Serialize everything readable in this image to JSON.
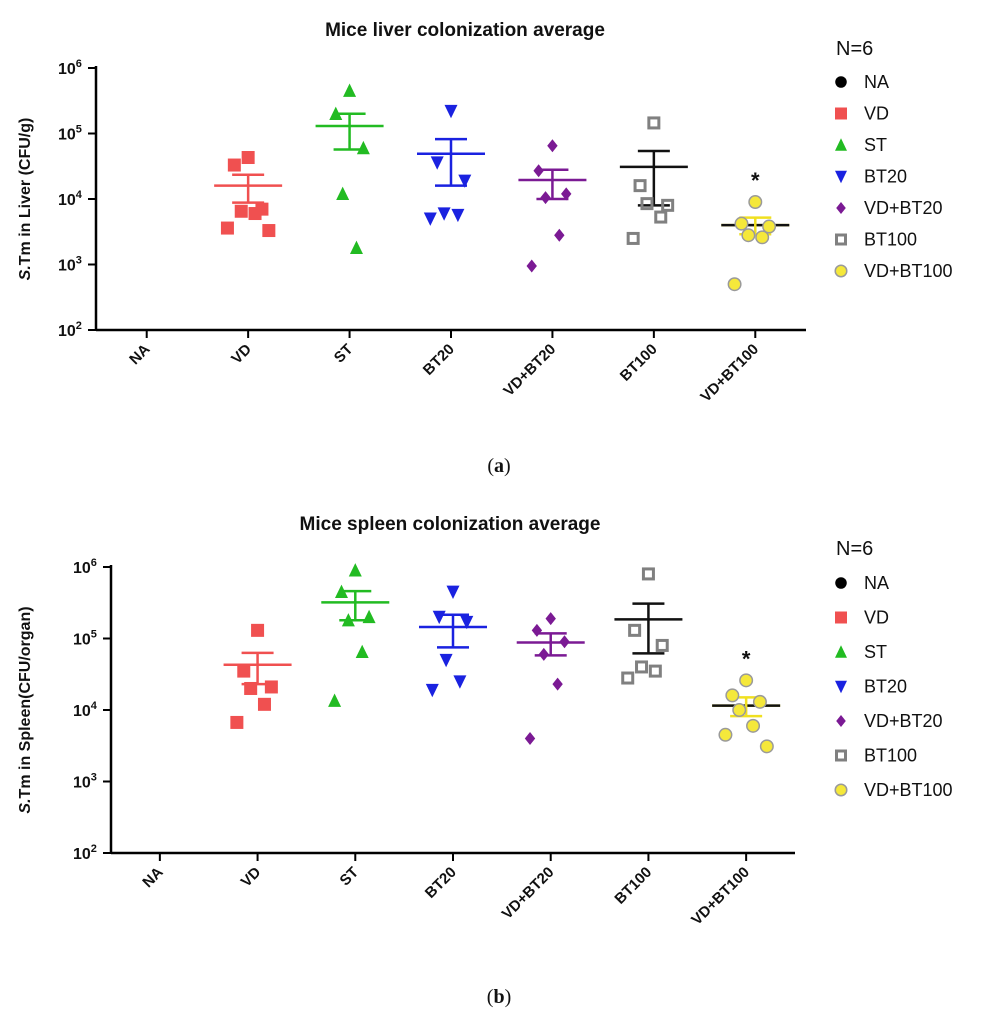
{
  "chart_data": [
    {
      "type": "scatter",
      "title": "Mice liver colonization average",
      "ylabel_italic": "S.",
      "ylabel": "Tm in Liver (CFU/g)",
      "yscale": "log",
      "ylim": [
        100,
        1000000
      ],
      "yticks": [
        {
          "value": 100,
          "base": "10",
          "exp": "2"
        },
        {
          "value": 1000,
          "base": "10",
          "exp": "3"
        },
        {
          "value": 10000,
          "base": "10",
          "exp": "4"
        },
        {
          "value": 100000,
          "base": "10",
          "exp": "5"
        },
        {
          "value": 1000000,
          "base": "10",
          "exp": "6"
        }
      ],
      "categories": [
        "NA",
        "VD",
        "ST",
        "BT20",
        "VD+BT20",
        "BT100",
        "VD+BT100"
      ],
      "legend_title": "N=6",
      "legend_position": "right",
      "caption": "(a)",
      "annotation": {
        "text": "*",
        "category": "VD+BT100"
      },
      "series": [
        {
          "name": "NA",
          "marker": "circle",
          "color": "#000000",
          "points": [],
          "mean": null,
          "sem": null
        },
        {
          "name": "VD",
          "marker": "square",
          "color": "#f05050",
          "points": [
            43000,
            33000,
            7000,
            6500,
            6000,
            3600,
            3300
          ],
          "mean": 16000,
          "sem": [
            8800,
            23500
          ]
        },
        {
          "name": "ST",
          "marker": "triangle-up",
          "color": "#22bb22",
          "points": [
            450000,
            200000,
            60000,
            12000,
            1800
          ],
          "mean": 130000,
          "sem": [
            57000,
            200000
          ]
        },
        {
          "name": "BT20",
          "marker": "triangle-down",
          "color": "#1a22e0",
          "points": [
            220000,
            36000,
            19000,
            6000,
            5700,
            5000
          ],
          "mean": 49000,
          "sem": [
            16000,
            82000
          ]
        },
        {
          "name": "VD+BT20",
          "marker": "diamond",
          "color": "#7b1a94",
          "points": [
            65000,
            27000,
            12000,
            10500,
            2800,
            950
          ],
          "mean": 19500,
          "sem": [
            10000,
            28000
          ]
        },
        {
          "name": "BT100",
          "marker": "square-open",
          "color": "#808080",
          "points": [
            145000,
            16000,
            8000,
            8500,
            5300,
            2500
          ],
          "mean": 31000,
          "sem": [
            8000,
            54000
          ]
        },
        {
          "name": "VD+BT100",
          "marker": "circle-yellow",
          "color": "#f5e83a",
          "points": [
            9000,
            4200,
            3800,
            2800,
            2600,
            500
          ],
          "mean": 4000,
          "sem": [
            2900,
            5200
          ]
        }
      ]
    },
    {
      "type": "scatter",
      "title": "Mice spleen colonization average",
      "ylabel_italic": "S.",
      "ylabel": "Tm in Spleen(CFU/organ)",
      "yscale": "log",
      "ylim": [
        100,
        1000000
      ],
      "yticks": [
        {
          "value": 100,
          "base": "10",
          "exp": "2"
        },
        {
          "value": 1000,
          "base": "10",
          "exp": "3"
        },
        {
          "value": 10000,
          "base": "10",
          "exp": "4"
        },
        {
          "value": 100000,
          "base": "10",
          "exp": "5"
        },
        {
          "value": 1000000,
          "base": "10",
          "exp": "6"
        }
      ],
      "categories": [
        "NA",
        "VD",
        "ST",
        "BT20",
        "VD+BT20",
        "BT100",
        "VD+BT100"
      ],
      "legend_title": "N=6",
      "legend_position": "right",
      "caption": "(b)",
      "annotation": {
        "text": "*",
        "category": "VD+BT100"
      },
      "series": [
        {
          "name": "NA",
          "marker": "circle",
          "color": "#000000",
          "points": [],
          "mean": null,
          "sem": null
        },
        {
          "name": "VD",
          "marker": "square",
          "color": "#f05050",
          "points": [
            130000,
            35000,
            21000,
            20000,
            12000,
            6700
          ],
          "mean": 43000,
          "sem": [
            23000,
            63000
          ]
        },
        {
          "name": "ST",
          "marker": "triangle-up",
          "color": "#22bb22",
          "points": [
            900000,
            450000,
            200000,
            180000,
            65000,
            13500
          ],
          "mean": 320000,
          "sem": [
            180000,
            460000
          ]
        },
        {
          "name": "BT20",
          "marker": "triangle-down",
          "color": "#1a22e0",
          "points": [
            450000,
            200000,
            170000,
            50000,
            25000,
            19000
          ],
          "mean": 145000,
          "sem": [
            75000,
            215000
          ]
        },
        {
          "name": "VD+BT20",
          "marker": "diamond",
          "color": "#7b1a94",
          "points": [
            190000,
            130000,
            90000,
            60000,
            23000,
            4000
          ],
          "mean": 88000,
          "sem": [
            58000,
            118000
          ]
        },
        {
          "name": "BT100",
          "marker": "square-open",
          "color": "#808080",
          "points": [
            800000,
            130000,
            80000,
            40000,
            35000,
            28000
          ],
          "mean": 185000,
          "sem": [
            62000,
            308000
          ]
        },
        {
          "name": "VD+BT100",
          "marker": "circle-yellow",
          "color": "#f5e83a",
          "points": [
            26000,
            16000,
            13000,
            10000,
            6000,
            4500,
            3100
          ],
          "mean": 11500,
          "sem": [
            8200,
            15000
          ]
        }
      ]
    }
  ]
}
